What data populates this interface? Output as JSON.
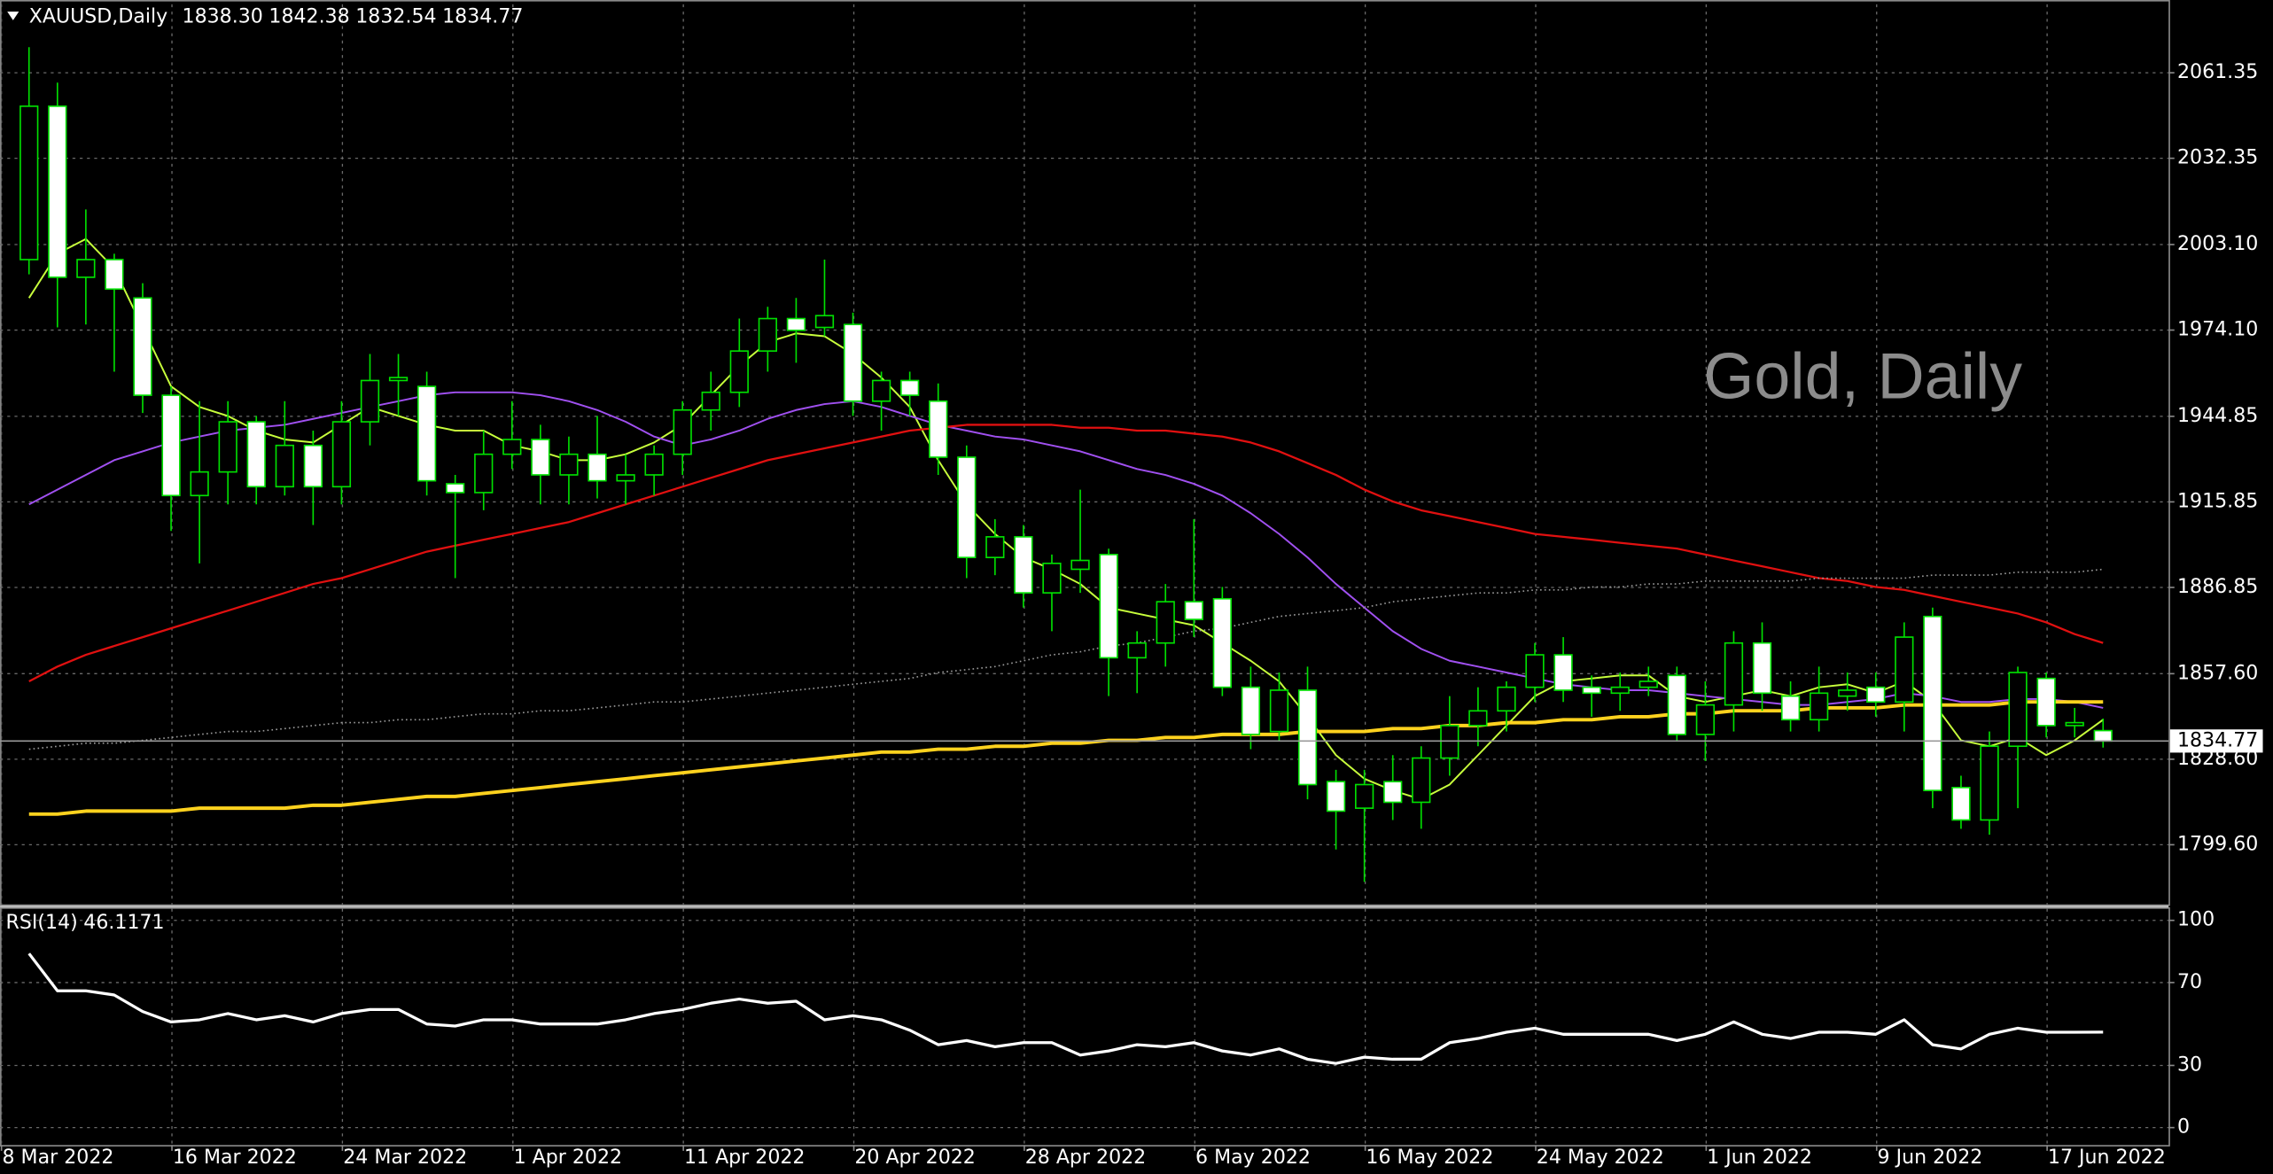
{
  "chart_data": [
    {
      "type": "candlestick",
      "title": "XAUUSD,Daily",
      "header_values": [
        "1838.30",
        "1842.38",
        "1832.54",
        "1834.77"
      ],
      "watermark": "Gold, Daily",
      "categories": [
        "8 Mar 2022",
        null,
        null,
        null,
        null,
        null,
        "16 Mar 2022",
        null,
        null,
        null,
        null,
        null,
        "24 Mar 2022",
        null,
        null,
        null,
        null,
        null,
        "1 Apr 2022",
        null,
        null,
        null,
        null,
        null,
        "11 Apr 2022",
        null,
        null,
        null,
        null,
        null,
        "20 Apr 2022",
        null,
        null,
        null,
        null,
        null,
        "28 Apr 2022",
        null,
        null,
        null,
        null,
        null,
        "6 May 2022",
        null,
        null,
        null,
        null,
        null,
        "16 May 2022",
        null,
        null,
        null,
        null,
        null,
        "24 May 2022",
        null,
        null,
        null,
        null,
        null,
        "1 Jun 2022",
        null,
        null,
        null,
        null,
        null,
        "9 Jun 2022",
        null,
        null,
        null,
        null,
        null,
        "17 Jun 2022",
        null
      ],
      "open": [
        1998,
        2050,
        1992,
        1998,
        1985,
        1952,
        1918,
        1926,
        1943,
        1921,
        1935,
        1921,
        1943,
        1957,
        1955,
        1922,
        1919,
        1932,
        1937,
        1925,
        1932,
        1923,
        1925,
        1932,
        1947,
        1953,
        1967,
        1978,
        1975,
        1976,
        1950,
        1957,
        1950,
        1931,
        1897,
        1904,
        1885,
        1893,
        1898,
        1863,
        1868,
        1882,
        1883,
        1853,
        1838,
        1852,
        1821,
        1812,
        1821,
        1814,
        1829,
        1840,
        1845,
        1853,
        1864,
        1853,
        1851,
        1853,
        1857,
        1837,
        1847,
        1868,
        1850,
        1842,
        1850,
        1853,
        1848,
        1877,
        1819,
        1808,
        1833,
        1856,
        1840,
        1838.3
      ],
      "high": [
        2070,
        2058,
        2015,
        2000,
        1990,
        1955,
        1950,
        1950,
        1945,
        1950,
        1940,
        1950,
        1966,
        1966,
        1960,
        1925,
        1940,
        1950,
        1942,
        1938,
        1945,
        1932,
        1935,
        1950,
        1960,
        1978,
        1982,
        1985,
        1998,
        1980,
        1960,
        1960,
        1956,
        1935,
        1910,
        1908,
        1898,
        1920,
        1900,
        1872,
        1888,
        1910,
        1887,
        1860,
        1858,
        1860,
        1825,
        1825,
        1830,
        1833,
        1850,
        1853,
        1855,
        1868,
        1870,
        1857,
        1858,
        1860,
        1860,
        1855,
        1872,
        1875,
        1855,
        1860,
        1858,
        1858,
        1875,
        1880,
        1823,
        1838,
        1860,
        1858,
        1846,
        1842.38
      ],
      "low": [
        1993,
        1975,
        1976,
        1960,
        1946,
        1906,
        1895,
        1915,
        1915,
        1918,
        1908,
        1915,
        1935,
        1945,
        1918,
        1890,
        1913,
        1927,
        1915,
        1915,
        1917,
        1915,
        1918,
        1925,
        1940,
        1948,
        1960,
        1963,
        1972,
        1945,
        1940,
        1945,
        1925,
        1890,
        1891,
        1880,
        1872,
        1885,
        1850,
        1851,
        1860,
        1870,
        1850,
        1832,
        1835,
        1815,
        1798,
        1787,
        1808,
        1805,
        1823,
        1833,
        1838,
        1848,
        1848,
        1843,
        1845,
        1850,
        1835,
        1828,
        1838,
        1845,
        1838,
        1838,
        1845,
        1843,
        1838,
        1812,
        1805,
        1803,
        1812,
        1836,
        1836,
        1832.54
      ],
      "close": [
        2050,
        1992,
        1998,
        1988,
        1952,
        1918,
        1926,
        1943,
        1921,
        1935,
        1921,
        1943,
        1957,
        1958,
        1923,
        1919,
        1932,
        1937,
        1925,
        1932,
        1923,
        1925,
        1932,
        1947,
        1953,
        1967,
        1978,
        1974,
        1979,
        1950,
        1957,
        1952,
        1931,
        1897,
        1904,
        1885,
        1895,
        1896,
        1863,
        1868,
        1882,
        1876,
        1853,
        1837,
        1852,
        1820,
        1811,
        1820,
        1814,
        1829,
        1840,
        1845,
        1853,
        1864,
        1852,
        1851,
        1853,
        1855,
        1837,
        1847,
        1868,
        1851,
        1842,
        1851,
        1852,
        1848,
        1870,
        1818,
        1808,
        1833,
        1858,
        1840,
        1841,
        1834.77
      ],
      "colors": {
        "bull_body": "#000000",
        "bear_body": "#ffffff",
        "wick": "#00e000",
        "background": "#000000"
      },
      "series": [
        {
          "color": "#c8ff3c",
          "width": 1.2,
          "values": [
            1985,
            2000,
            2005,
            1995,
            1975,
            1955,
            1948,
            1945,
            1940,
            1937,
            1936,
            1942,
            1948,
            1945,
            1942,
            1940,
            1940,
            1935,
            1933,
            1930,
            1930,
            1932,
            1936,
            1942,
            1952,
            1962,
            1970,
            1973,
            1972,
            1966,
            1958,
            1948,
            1930,
            1915,
            1905,
            1897,
            1893,
            1888,
            1880,
            1878,
            1876,
            1874,
            1868,
            1862,
            1855,
            1843,
            1830,
            1822,
            1818,
            1815,
            1820,
            1830,
            1840,
            1850,
            1855,
            1856,
            1857,
            1857,
            1850,
            1848,
            1850,
            1852,
            1850,
            1853,
            1854,
            1851,
            1855,
            1848,
            1835,
            1833,
            1836,
            1830,
            1835,
            1842
          ]
        },
        {
          "color": "#a050f0",
          "width": 1.2,
          "values": [
            1915,
            1920,
            1925,
            1930,
            1933,
            1936,
            1938,
            1940,
            1941,
            1942,
            1944,
            1946,
            1948,
            1950,
            1952,
            1953,
            1953,
            1953,
            1952,
            1950,
            1947,
            1943,
            1938,
            1935,
            1937,
            1940,
            1944,
            1947,
            1949,
            1950,
            1948,
            1945,
            1942,
            1940,
            1938,
            1937,
            1935,
            1933,
            1930,
            1927,
            1925,
            1922,
            1918,
            1912,
            1905,
            1897,
            1888,
            1880,
            1872,
            1866,
            1862,
            1860,
            1858,
            1856,
            1854,
            1853,
            1852,
            1852,
            1851,
            1850,
            1849,
            1848,
            1847,
            1847,
            1848,
            1849,
            1851,
            1850,
            1848,
            1848,
            1849,
            1849,
            1848,
            1846
          ]
        },
        {
          "color": "#e01010",
          "width": 1.4,
          "values": [
            1855,
            1860,
            1864,
            1867,
            1870,
            1873,
            1876,
            1879,
            1882,
            1885,
            1888,
            1890,
            1893,
            1896,
            1899,
            1901,
            1903,
            1905,
            1907,
            1909,
            1912,
            1915,
            1918,
            1921,
            1924,
            1927,
            1930,
            1932,
            1934,
            1936,
            1938,
            1940,
            1941,
            1942,
            1942,
            1942,
            1942,
            1941,
            1941,
            1940,
            1940,
            1939,
            1938,
            1936,
            1933,
            1929,
            1925,
            1920,
            1916,
            1913,
            1911,
            1909,
            1907,
            1905,
            1904,
            1903,
            1902,
            1901,
            1900,
            1898,
            1896,
            1894,
            1892,
            1890,
            1889,
            1887,
            1886,
            1884,
            1882,
            1880,
            1878,
            1875,
            1871,
            1868
          ]
        },
        {
          "color": "#9a9a9a",
          "width": 1,
          "dash": "1,2",
          "values": [
            1832,
            1833,
            1834,
            1834,
            1835,
            1836,
            1837,
            1838,
            1838,
            1839,
            1840,
            1841,
            1841,
            1842,
            1842,
            1843,
            1844,
            1844,
            1845,
            1845,
            1846,
            1847,
            1848,
            1848,
            1849,
            1850,
            1851,
            1852,
            1853,
            1854,
            1855,
            1856,
            1858,
            1859,
            1860,
            1862,
            1864,
            1865,
            1867,
            1868,
            1870,
            1872,
            1873,
            1875,
            1877,
            1878,
            1879,
            1880,
            1882,
            1883,
            1884,
            1885,
            1885,
            1886,
            1886,
            1887,
            1887,
            1888,
            1888,
            1889,
            1889,
            1889,
            1889,
            1890,
            1890,
            1890,
            1890,
            1891,
            1891,
            1891,
            1892,
            1892,
            1892,
            1893
          ]
        },
        {
          "color": "#ffd21e",
          "width": 2.4,
          "values": [
            1810,
            1810,
            1811,
            1811,
            1811,
            1811,
            1812,
            1812,
            1812,
            1812,
            1813,
            1813,
            1814,
            1815,
            1816,
            1816,
            1817,
            1818,
            1819,
            1820,
            1821,
            1822,
            1823,
            1824,
            1825,
            1826,
            1827,
            1828,
            1829,
            1830,
            1831,
            1831,
            1832,
            1832,
            1833,
            1833,
            1834,
            1834,
            1835,
            1835,
            1836,
            1836,
            1837,
            1837,
            1837,
            1838,
            1838,
            1838,
            1839,
            1839,
            1840,
            1840,
            1841,
            1841,
            1842,
            1842,
            1843,
            1843,
            1844,
            1844,
            1845,
            1845,
            1845,
            1846,
            1846,
            1846,
            1847,
            1847,
            1847,
            1847,
            1848,
            1848,
            1848,
            1848
          ]
        }
      ],
      "last_price": {
        "value": 1834.77,
        "label": "1834.77"
      },
      "ylim": [
        1779.37,
        2084.54
      ],
      "yticks": [
        {
          "value": 1799.6,
          "label": "1799.60"
        },
        {
          "value": 1828.6,
          "label": "1828.60"
        },
        {
          "value": 1857.6,
          "label": "1857.60"
        },
        {
          "value": 1886.85,
          "label": "1886.85"
        },
        {
          "value": 1915.85,
          "label": "1915.85"
        },
        {
          "value": 1944.85,
          "label": "1944.85"
        },
        {
          "value": 1974.1,
          "label": "1974.10"
        },
        {
          "value": 2003.1,
          "label": "2003.10"
        },
        {
          "value": 2032.35,
          "label": "2032.35"
        },
        {
          "value": 2061.35,
          "label": "2061.35"
        }
      ],
      "grid": true
    },
    {
      "type": "line",
      "name": "RSI(14)",
      "value_label": "46.1171",
      "color": "#ffffff",
      "values": [
        84,
        66,
        66,
        64,
        56,
        51,
        52,
        55,
        52,
        54,
        51,
        55,
        57,
        57,
        50,
        49,
        52,
        52,
        50,
        50,
        50,
        52,
        55,
        57,
        60,
        62,
        60,
        61,
        52,
        54,
        52,
        47,
        40,
        42,
        39,
        41,
        41,
        35,
        37,
        40,
        39,
        41,
        37,
        35,
        38,
        33,
        31,
        34,
        33,
        33,
        41,
        43,
        46,
        48,
        45,
        45,
        45,
        45,
        42,
        45,
        51,
        45,
        43,
        46,
        46,
        45,
        52,
        40,
        38,
        45,
        48,
        46,
        46,
        46.1171
      ],
      "ylim": [
        -8.4,
        105.6
      ],
      "yticks": [
        0,
        30,
        70,
        100
      ],
      "grid": true
    }
  ]
}
